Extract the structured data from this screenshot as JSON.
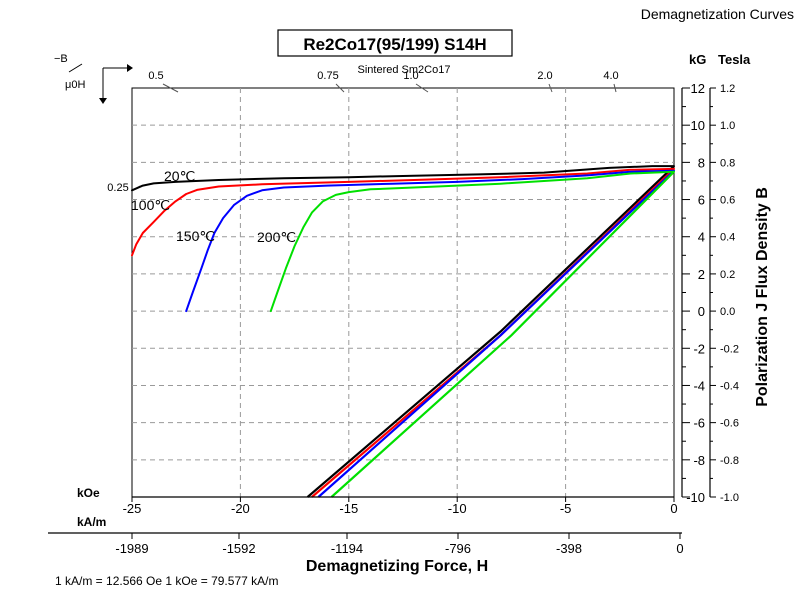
{
  "header": {
    "corner_title": "Demagnetization Curves",
    "grade": "Re2Co17(95/199) S14H",
    "material": "Sintered Sm2Co17"
  },
  "permeance": {
    "symbol_top": "−B",
    "symbol_bottom": "μ0H",
    "labels": [
      "0.25",
      "0.5",
      "0.75",
      "1.0",
      "2.0",
      "4.0"
    ]
  },
  "units": {
    "x_primary": "kOe",
    "x_secondary": "kA/m",
    "y_primary": "kG",
    "y_secondary": "Tesla"
  },
  "conversion_note": "1 kA/m = 12.566 Oe 1 kOe = 79.577 kA/m",
  "chart_data": {
    "type": "line",
    "xlabel": "Demagnetizing Force, H",
    "ylabel": "Polarization J Flux Density B",
    "xlim": [
      -25,
      0
    ],
    "ylim": [
      -10,
      12
    ],
    "xticks_koe": [
      "-25",
      "-20",
      "-15",
      "-10",
      "-5",
      "0"
    ],
    "xticks_kam": [
      "-1989",
      "-1592",
      "-1194",
      "-796",
      "-398",
      "0"
    ],
    "yticks_kg": [
      "12",
      "10",
      "8",
      "6",
      "4",
      "2",
      "0",
      "-2",
      "-4",
      "-6",
      "-8",
      "-10"
    ],
    "yticks_tesla": [
      "1.2",
      "1.0",
      "0.8",
      "0.6",
      "0.4",
      "0.2",
      "0.0",
      "-0.2",
      "-0.4",
      "-0.6",
      "-0.8",
      "-1.0"
    ],
    "grid": true,
    "series": [
      {
        "name": "20℃",
        "color": "#000000",
        "intrinsic": [
          [
            -25,
            6.5
          ],
          [
            -24.5,
            6.75
          ],
          [
            -24,
            6.87
          ],
          [
            -23,
            6.95
          ],
          [
            -21,
            7.05
          ],
          [
            -18,
            7.15
          ],
          [
            -15,
            7.2
          ],
          [
            -12,
            7.28
          ],
          [
            -9,
            7.35
          ],
          [
            -6,
            7.45
          ],
          [
            -3,
            7.7
          ],
          [
            -1,
            7.8
          ],
          [
            0,
            7.8
          ]
        ],
        "normal": [
          [
            -16.9,
            -10
          ],
          [
            -8,
            -1.1
          ],
          [
            0,
            7.8
          ]
        ]
      },
      {
        "name": "100℃",
        "color": "#ff0000",
        "intrinsic": [
          [
            -25,
            3.0
          ],
          [
            -24.8,
            3.6
          ],
          [
            -24.5,
            4.2
          ],
          [
            -24,
            4.8
          ],
          [
            -23.5,
            5.4
          ],
          [
            -23,
            5.9
          ],
          [
            -22.5,
            6.3
          ],
          [
            -22,
            6.52
          ],
          [
            -21,
            6.7
          ],
          [
            -19,
            6.82
          ],
          [
            -15,
            6.95
          ],
          [
            -12,
            7.05
          ],
          [
            -8,
            7.2
          ],
          [
            -4,
            7.4
          ],
          [
            -2,
            7.6
          ],
          [
            0,
            7.65
          ]
        ],
        "normal": [
          [
            -16.7,
            -10
          ],
          [
            -8,
            -1.3
          ],
          [
            0,
            7.65
          ]
        ]
      },
      {
        "name": "150℃",
        "color": "#0000ff",
        "intrinsic": [
          [
            -22.5,
            0
          ],
          [
            -22.2,
            1.0
          ],
          [
            -21.8,
            2.3
          ],
          [
            -21.5,
            3.3
          ],
          [
            -21.2,
            4.2
          ],
          [
            -20.8,
            5.0
          ],
          [
            -20.3,
            5.7
          ],
          [
            -19.7,
            6.2
          ],
          [
            -19,
            6.5
          ],
          [
            -18,
            6.65
          ],
          [
            -16,
            6.75
          ],
          [
            -13,
            6.85
          ],
          [
            -10,
            6.95
          ],
          [
            -7,
            7.1
          ],
          [
            -4,
            7.3
          ],
          [
            -2,
            7.5
          ],
          [
            0,
            7.55
          ]
        ],
        "normal": [
          [
            -16.4,
            -10
          ],
          [
            -8,
            -1.3
          ],
          [
            0,
            7.55
          ]
        ]
      },
      {
        "name": "200℃",
        "color": "#00e000",
        "intrinsic": [
          [
            -18.6,
            0
          ],
          [
            -18.3,
            1.0
          ],
          [
            -17.9,
            2.3
          ],
          [
            -17.5,
            3.5
          ],
          [
            -17.1,
            4.5
          ],
          [
            -16.7,
            5.3
          ],
          [
            -16.2,
            5.9
          ],
          [
            -15.6,
            6.25
          ],
          [
            -15,
            6.4
          ],
          [
            -14,
            6.55
          ],
          [
            -12,
            6.65
          ],
          [
            -10,
            6.75
          ],
          [
            -8,
            6.85
          ],
          [
            -6,
            7.0
          ],
          [
            -4,
            7.15
          ],
          [
            -2,
            7.4
          ],
          [
            0,
            7.5
          ]
        ],
        "normal": [
          [
            -15.8,
            -10
          ],
          [
            -7.5,
            -1.3
          ],
          [
            0,
            7.5
          ]
        ]
      }
    ]
  }
}
